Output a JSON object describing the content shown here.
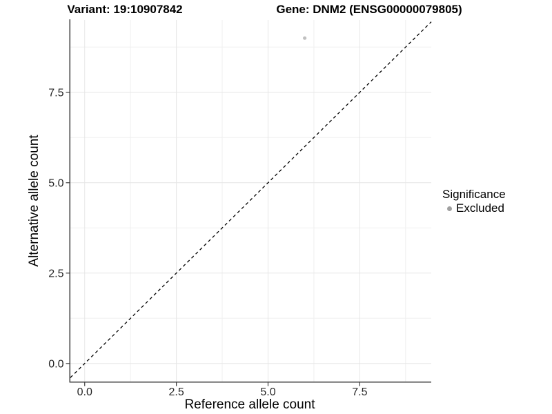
{
  "titles": {
    "variant": "Variant: 19:10907842",
    "gene": "Gene: DNM2 (ENSG00000079805)"
  },
  "colors": {
    "background": "#ffffff",
    "grid_major": "#e6e6e6",
    "grid_minor": "#f0f0f0",
    "axis_line": "#3f3f3f",
    "tick_text": "#262626",
    "point": "#c0c0c0",
    "legend_point": "#a0a0a0",
    "reference_line": "#000000"
  },
  "chart_data": {
    "type": "scatter",
    "title": "Variant: 19:10907842",
    "title2": "Gene: DNM2 (ENSG00000079805)",
    "xlabel": "Reference allele count",
    "ylabel": "Alternative allele count",
    "xlim": [
      -0.39,
      9.45
    ],
    "ylim": [
      -0.5,
      9.5
    ],
    "x_ticks": [
      0.0,
      2.5,
      5.0,
      7.5
    ],
    "y_ticks": [
      0.0,
      2.5,
      5.0,
      7.5
    ],
    "x_tick_labels": [
      "0.0",
      "2.5",
      "5.0",
      "7.5"
    ],
    "y_tick_labels": [
      "0.0",
      "2.5",
      "5.0",
      "7.5"
    ],
    "x_minor_ticks": [
      1.25,
      3.75,
      6.25,
      8.75
    ],
    "y_minor_ticks": [
      1.25,
      3.75,
      6.25,
      8.75
    ],
    "grid": "major+minor",
    "points": [
      {
        "x": 6,
        "y": 9,
        "series": "Excluded"
      }
    ],
    "reference_line": {
      "type": "abline",
      "slope": 1,
      "intercept": 0,
      "style": "dashed"
    },
    "legend": {
      "position": "right",
      "title": "Significance",
      "items": [
        {
          "label": "Excluded",
          "color": "#a0a0a0",
          "marker": "circle"
        }
      ]
    }
  }
}
